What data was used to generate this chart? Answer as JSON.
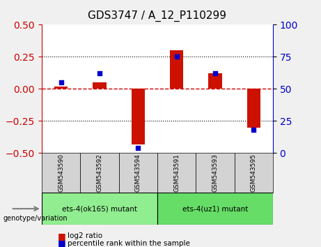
{
  "title": "GDS3747 / A_12_P110299",
  "samples": [
    "GSM543590",
    "GSM543592",
    "GSM543594",
    "GSM543591",
    "GSM543593",
    "GSM543595"
  ],
  "log2_ratio": [
    0.02,
    0.05,
    -0.43,
    0.3,
    0.12,
    -0.3
  ],
  "percentile_rank": [
    55,
    62,
    4,
    75,
    62,
    18
  ],
  "groups": [
    {
      "label": "ets-4(ok165) mutant",
      "samples": [
        0,
        1,
        2
      ],
      "color": "#90ee90"
    },
    {
      "label": "ets-4(uz1) mutant",
      "samples": [
        3,
        4,
        5
      ],
      "color": "#66dd66"
    }
  ],
  "ylim_left": [
    -0.5,
    0.5
  ],
  "ylim_right": [
    0,
    100
  ],
  "yticks_left": [
    -0.5,
    -0.25,
    0.0,
    0.25,
    0.5
  ],
  "yticks_right": [
    0,
    25,
    50,
    75,
    100
  ],
  "bar_color_red": "#cc1100",
  "bar_color_blue": "#0000cc",
  "zero_line_color": "#cc0000",
  "grid_color": "#000000",
  "bg_plot": "#ffffff",
  "bg_sample": "#d3d3d3",
  "left_axis_color": "#cc0000",
  "right_axis_color": "#0000cc"
}
